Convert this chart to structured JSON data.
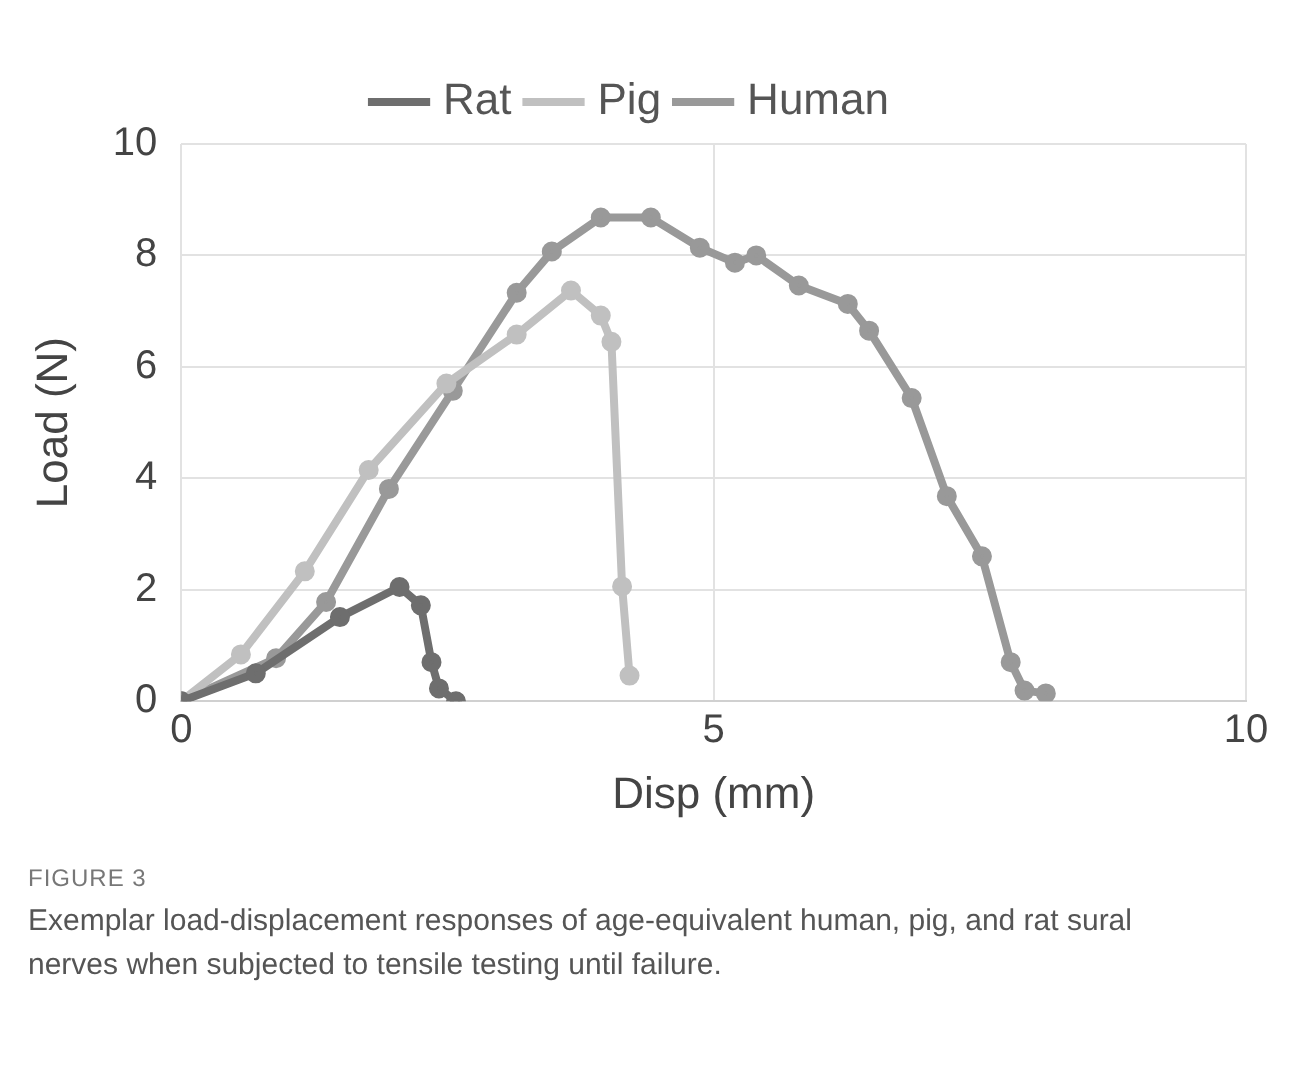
{
  "chart_data": {
    "type": "line",
    "xlabel": "Disp (mm)",
    "ylabel": "Load (N)",
    "xlim": [
      0,
      10
    ],
    "xticks": [
      0,
      5,
      10
    ],
    "ylim": [
      0,
      10
    ],
    "yticks": [
      0,
      2,
      4,
      6,
      8,
      10
    ],
    "grid": true,
    "legend": "top",
    "marker": "circle",
    "line_style": "solid",
    "series": [
      {
        "name": "Rat",
        "color": "#6e6e6e",
        "x": [
          0,
          0.7,
          1.49,
          2.05,
          2.25,
          2.35,
          2.42,
          2.58
        ],
        "values": [
          0,
          0.5,
          1.51,
          2.05,
          1.72,
          0.7,
          0.23,
          0
        ]
      },
      {
        "name": "Pig",
        "color": "#c0c0c0",
        "x": [
          0,
          0.56,
          1.16,
          1.76,
          2.49,
          3.15,
          3.66,
          3.94,
          4.04,
          4.14,
          4.21
        ],
        "values": [
          0,
          0.84,
          2.33,
          4.15,
          5.7,
          6.58,
          7.37,
          6.92,
          6.45,
          2.06,
          0.46
        ]
      },
      {
        "name": "Human",
        "color": "#999999",
        "x": [
          0,
          0.89,
          1.36,
          1.95,
          2.55,
          3.15,
          3.48,
          3.94,
          4.41,
          4.87,
          5.2,
          5.4,
          5.8,
          6.26,
          6.46,
          6.86,
          7.19,
          7.52,
          7.79,
          7.92,
          8.12
        ],
        "values": [
          0,
          0.77,
          1.78,
          3.81,
          5.57,
          7.33,
          8.07,
          8.68,
          8.68,
          8.14,
          7.87,
          8.0,
          7.46,
          7.13,
          6.65,
          5.44,
          3.68,
          2.6,
          0.7,
          0.19,
          0.14
        ]
      }
    ],
    "annotations": [
      "FIGURE 3",
      "Exemplar load-displacement responses of age-equivalent human, pig, and rat sural nerves when subjected to tensile testing until failure."
    ]
  }
}
